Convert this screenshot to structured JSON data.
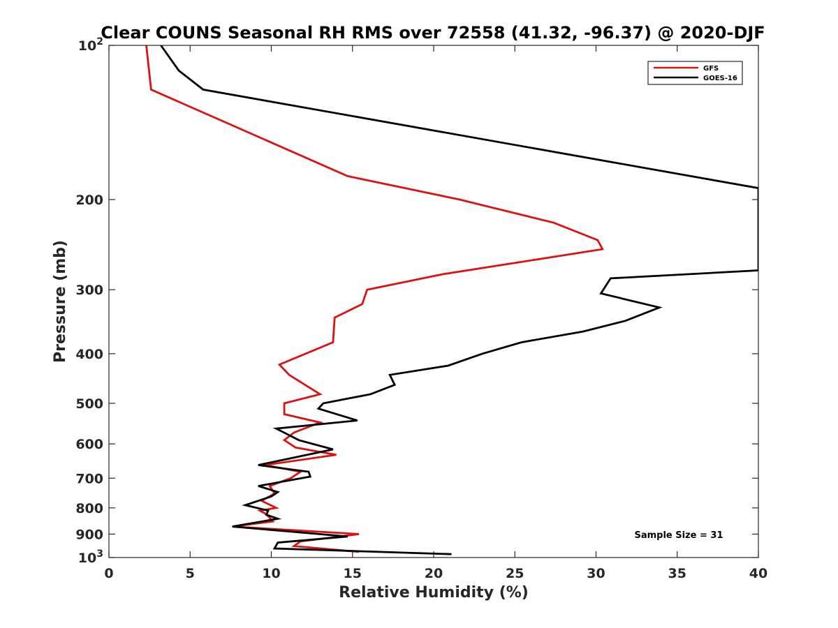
{
  "chart_data": {
    "type": "line",
    "title": "Clear COUNS Seasonal RH RMS over 72558 (41.32, -96.37) @ 2020-DJF",
    "xlabel": "Relative Humidity (%)",
    "ylabel": "Pressure (mb)",
    "xlim": [
      0,
      40
    ],
    "ylim": [
      100,
      1000
    ],
    "yscale": "log",
    "y_reversed": true,
    "xticks": [
      0,
      5,
      10,
      15,
      20,
      25,
      30,
      35,
      40
    ],
    "yticks": [
      {
        "value": 100,
        "label": "10",
        "exp": "2"
      },
      {
        "value": 200,
        "label": "200"
      },
      {
        "value": 300,
        "label": "300"
      },
      {
        "value": 400,
        "label": "400"
      },
      {
        "value": 500,
        "label": "500"
      },
      {
        "value": 600,
        "label": "600"
      },
      {
        "value": 700,
        "label": "700"
      },
      {
        "value": 800,
        "label": "800"
      },
      {
        "value": 900,
        "label": "900"
      },
      {
        "value": 1000,
        "label": "10",
        "exp": "3"
      }
    ],
    "legend_position": "top-right",
    "annotation": "Sample Size = 31",
    "series": [
      {
        "name": "GFS",
        "color": "#dd1111",
        "x": [
          2.3,
          2.6,
          14.7,
          21.6,
          27.4,
          30.1,
          30.4,
          20.5,
          15.9,
          15.6,
          13.9,
          13.8,
          10.5,
          11.1,
          13.0,
          10.8,
          10.8,
          13.0,
          11.4,
          10.8,
          11.5,
          14.0,
          9.6,
          11.8,
          11.2,
          9.9,
          10.2,
          9.4,
          10.3,
          9.3,
          9.6,
          9.8,
          10.1,
          7.6,
          15.4,
          11.8,
          11.4,
          15.4
        ],
        "y": [
          100,
          122,
          180,
          200,
          222,
          240,
          250,
          280,
          300,
          320,
          340,
          380,
          420,
          440,
          480,
          500,
          525,
          545,
          570,
          590,
          610,
          630,
          660,
          680,
          700,
          725,
          750,
          775,
          800,
          810,
          820,
          830,
          850,
          870,
          900,
          930,
          950,
          975
        ]
      },
      {
        "name": "GOES-16",
        "color": "#000000",
        "x": [
          3.2,
          4.3,
          5.8,
          40.0,
          40.0,
          30.9,
          30.3,
          33.9,
          31.8,
          29.2,
          25.4,
          23.0,
          20.9,
          17.3,
          17.6,
          16.1,
          13.2,
          12.9,
          15.3,
          10.3,
          11.7,
          13.8,
          9.2,
          12.3,
          12.4,
          9.2,
          10.4,
          10.0,
          8.4,
          9.8,
          9.7,
          10.4,
          7.6,
          14.7,
          10.4,
          10.2,
          21.1
        ],
        "y": [
          100,
          112,
          122,
          190,
          275,
          285,
          305,
          325,
          345,
          362,
          380,
          400,
          422,
          440,
          460,
          480,
          500,
          512,
          540,
          560,
          590,
          615,
          660,
          680,
          695,
          725,
          745,
          760,
          790,
          810,
          825,
          840,
          870,
          910,
          935,
          960,
          985
        ]
      }
    ]
  }
}
